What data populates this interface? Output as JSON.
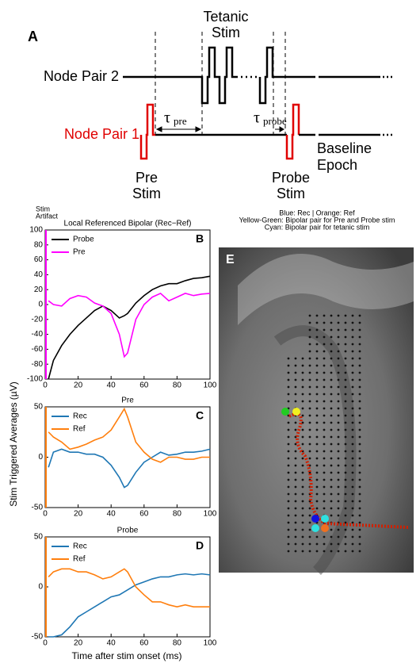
{
  "panel_a": {
    "label": "A",
    "tetanic_stim": [
      "Tetanic",
      "Stim"
    ],
    "node_pair_2": "Node Pair 2",
    "node_pair_1": "Node Pair 1",
    "tau_pre": {
      "symbol": "τ",
      "sub": "pre"
    },
    "tau_probe": {
      "symbol": "τ",
      "sub": "probe"
    },
    "pre_stim": [
      "Pre",
      "Stim"
    ],
    "probe_stim": [
      "Probe",
      "Stim"
    ],
    "baseline_epoch": [
      "Baseline",
      "Epoch"
    ]
  },
  "figure": {
    "y_label": "Stim Triggered Averages (µV)",
    "x_label": "Time after stim onset (ms)"
  },
  "chart_data": [
    {
      "type": "line",
      "panel_label": "B",
      "title": "Local Referenced Bipolar (Rec−Ref)",
      "annotation": [
        "Stim",
        "Artifact"
      ],
      "x": [
        2,
        5,
        10,
        15,
        20,
        25,
        30,
        35,
        40,
        45,
        48,
        50,
        55,
        60,
        65,
        70,
        75,
        80,
        85,
        90,
        95,
        100
      ],
      "series": [
        {
          "name": "Probe",
          "color": "#000000",
          "values": [
            -100,
            -75,
            -55,
            -40,
            -28,
            -18,
            -8,
            -2,
            -8,
            -18,
            -15,
            -12,
            2,
            12,
            20,
            25,
            28,
            28,
            32,
            35,
            36,
            38
          ]
        },
        {
          "name": "Pre",
          "color": "#ff00ff",
          "values": [
            5,
            0,
            -2,
            8,
            12,
            10,
            2,
            -2,
            -12,
            -40,
            -70,
            -65,
            -20,
            0,
            10,
            15,
            5,
            10,
            15,
            12,
            14,
            15
          ]
        }
      ],
      "xlim": [
        0,
        100
      ],
      "xticks": [
        0,
        20,
        40,
        60,
        80,
        100
      ],
      "ylim": [
        -100,
        100
      ],
      "yticks": [
        -100,
        -80,
        -60,
        -40,
        -20,
        0,
        20,
        40,
        60,
        80,
        100
      ]
    },
    {
      "type": "line",
      "panel_label": "C",
      "title": "Pre",
      "x": [
        2,
        5,
        10,
        15,
        20,
        25,
        30,
        35,
        40,
        45,
        48,
        50,
        55,
        60,
        65,
        70,
        75,
        80,
        85,
        90,
        95,
        100
      ],
      "series": [
        {
          "name": "Rec",
          "color": "#1f77b4",
          "values": [
            -10,
            5,
            8,
            5,
            5,
            3,
            3,
            0,
            -8,
            -20,
            -30,
            -28,
            -15,
            -5,
            0,
            5,
            2,
            3,
            5,
            5,
            6,
            8
          ]
        },
        {
          "name": "Ref",
          "color": "#ff7f0e",
          "values": [
            25,
            20,
            15,
            8,
            10,
            13,
            17,
            20,
            27,
            40,
            48,
            40,
            15,
            5,
            -2,
            -5,
            0,
            0,
            -2,
            -2,
            0,
            0
          ]
        }
      ],
      "xlim": [
        0,
        100
      ],
      "xticks": [
        0,
        20,
        40,
        60,
        80,
        100
      ],
      "ylim": [
        -50,
        50
      ],
      "yticks": [
        -50,
        0,
        50
      ]
    },
    {
      "type": "line",
      "panel_label": "D",
      "title": "Probe",
      "x": [
        2,
        5,
        10,
        15,
        20,
        25,
        30,
        35,
        40,
        45,
        48,
        50,
        55,
        60,
        65,
        70,
        75,
        80,
        85,
        90,
        95,
        100
      ],
      "series": [
        {
          "name": "Rec",
          "color": "#1f77b4",
          "values": [
            -50,
            -50,
            -48,
            -40,
            -30,
            -25,
            -20,
            -15,
            -10,
            -8,
            -5,
            -3,
            2,
            5,
            8,
            10,
            10,
            12,
            13,
            12,
            13,
            12
          ]
        },
        {
          "name": "Ref",
          "color": "#ff7f0e",
          "values": [
            10,
            15,
            18,
            18,
            15,
            15,
            12,
            8,
            10,
            15,
            18,
            15,
            0,
            -8,
            -15,
            -15,
            -18,
            -20,
            -18,
            -20,
            -20,
            -20
          ]
        }
      ],
      "xlim": [
        0,
        100
      ],
      "xticks": [
        0,
        20,
        40,
        60,
        80,
        100
      ],
      "ylim": [
        -50,
        50
      ],
      "yticks": [
        -50,
        0,
        50
      ]
    }
  ],
  "panel_e": {
    "label": "E",
    "legend_lines": [
      "Blue: Rec | Orange: Ref",
      "Yellow-Green: Bipolar pair for Pre and Probe stim",
      "Cyan: Bipolar pair for tetanic stim"
    ]
  }
}
